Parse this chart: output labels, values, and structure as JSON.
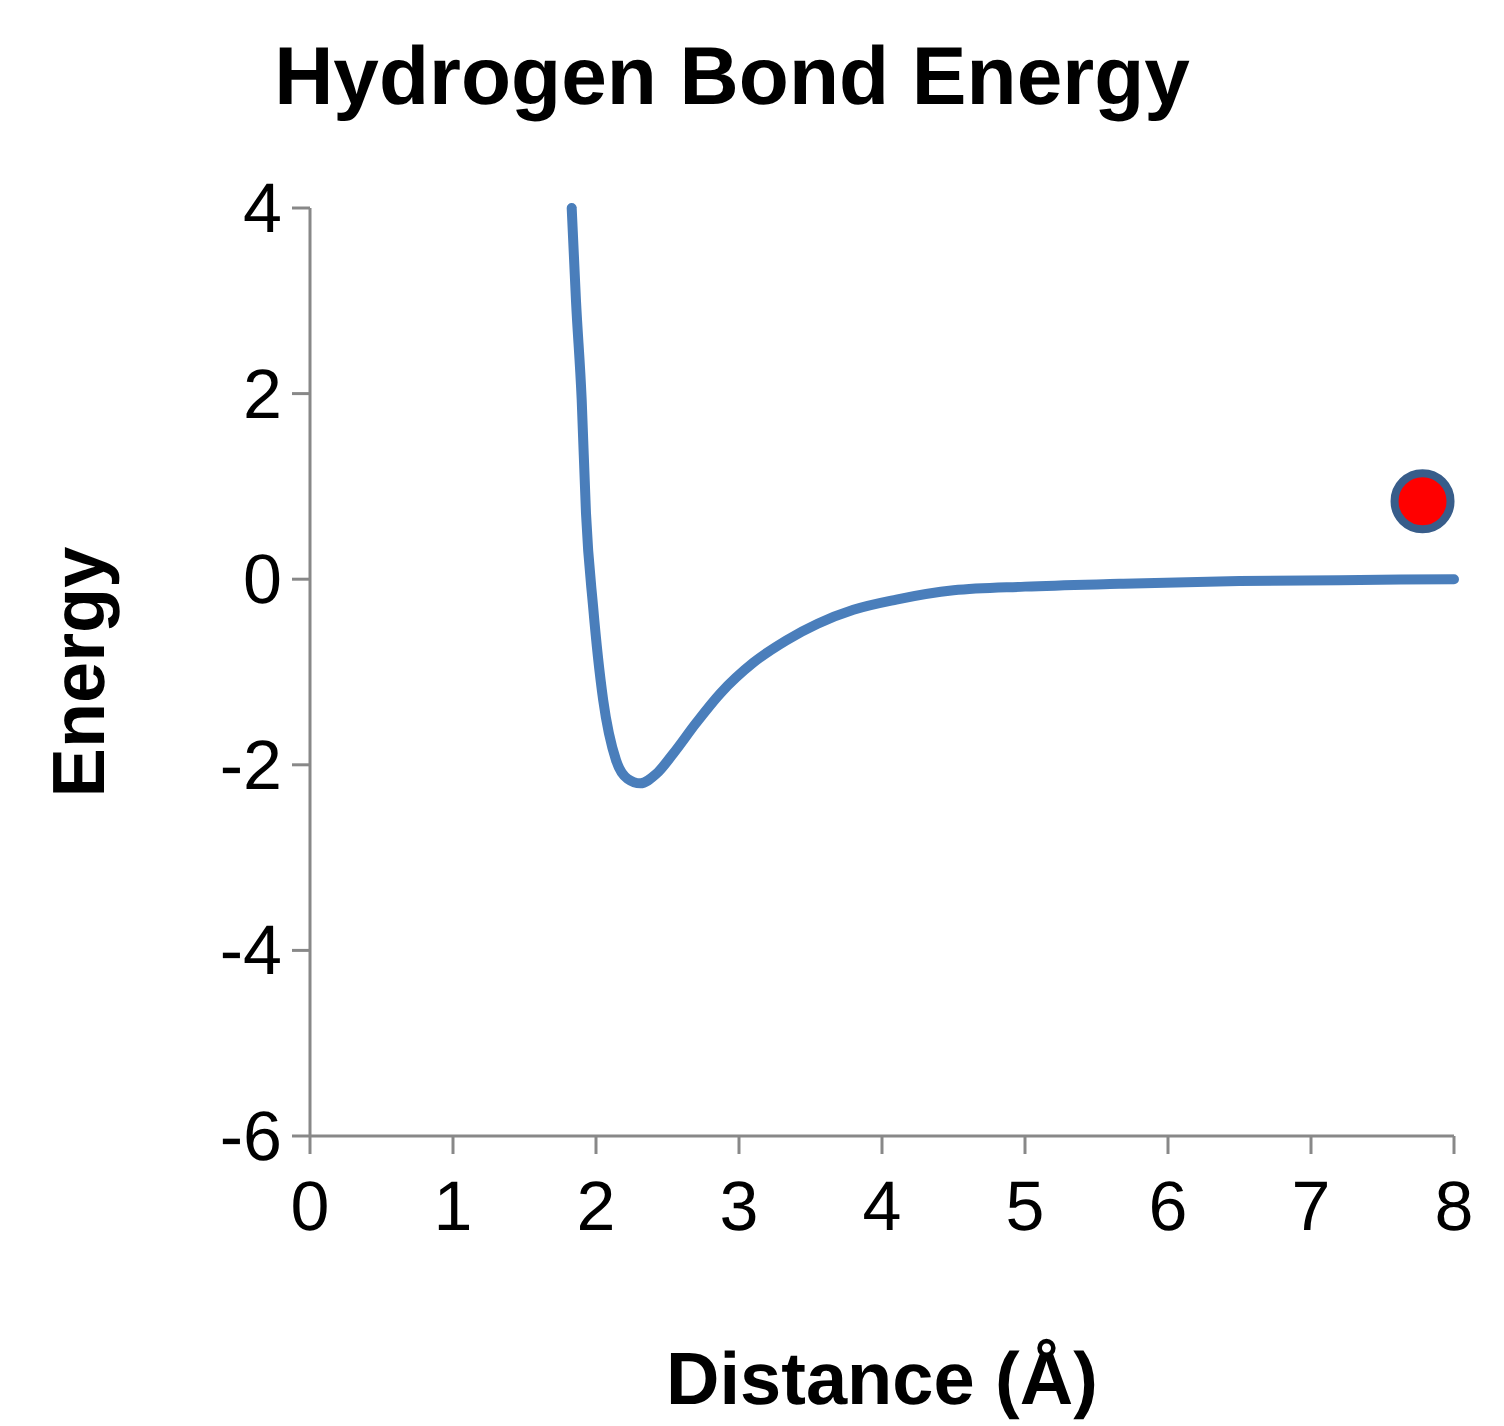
{
  "chart_data": {
    "type": "line",
    "title": "Hydrogen Bond Energy",
    "xlabel": "Distance (Å)",
    "ylabel": "Energy",
    "xlim": [
      0,
      8
    ],
    "xticks": [
      0,
      1,
      2,
      3,
      4,
      5,
      6,
      7,
      8
    ],
    "ylim": [
      -6,
      4
    ],
    "yticks": [
      -6,
      -4,
      -2,
      0,
      2,
      4
    ],
    "grid": false,
    "series": [
      {
        "color": "#4a7ebb",
        "marker": "none",
        "x": [
          1.83,
          1.86,
          1.9,
          1.93,
          1.98,
          2.05,
          2.14,
          2.22,
          2.31,
          2.42,
          2.54,
          2.7,
          2.87,
          3.1,
          3.33,
          3.55,
          3.8,
          4.1,
          4.5,
          5.0,
          5.66,
          6.5,
          7.2,
          8
        ],
        "values": [
          4,
          3,
          1.93,
          0.71,
          -0.3,
          -1.3,
          -1.95,
          -2.15,
          -2.2,
          -2.1,
          -1.88,
          -1.55,
          -1.23,
          -0.9,
          -0.66,
          -0.48,
          -0.33,
          -0.22,
          -0.12,
          -0.08,
          -0.05,
          -0.02,
          -0.01,
          0
        ]
      },
      {
        "type": "scatter",
        "color": "#ff0000",
        "marker": "circle",
        "x": [
          7.78
        ],
        "values": [
          0.84
        ]
      }
    ]
  }
}
